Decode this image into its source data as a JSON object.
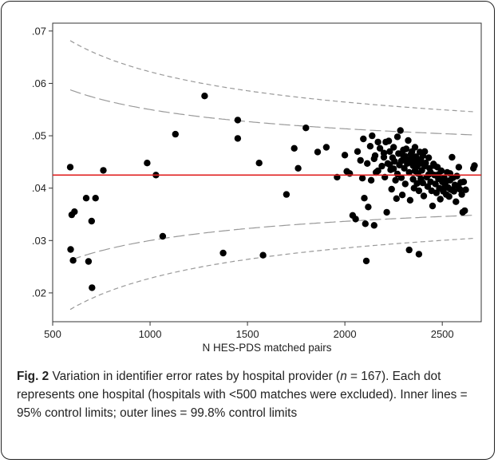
{
  "chart_data": {
    "type": "scatter",
    "xlabel": "N HES-PDS matched pairs",
    "ylabel": "",
    "xlim": [
      500,
      2700
    ],
    "ylim": [
      0.0145,
      0.0715
    ],
    "x_ticks": [
      500,
      1000,
      1500,
      2000,
      2500
    ],
    "x_tick_labels": [
      "500",
      "1000",
      "1500",
      "2000",
      "2500"
    ],
    "y_ticks": [
      0.02,
      0.03,
      0.04,
      0.05,
      0.06,
      0.07
    ],
    "y_tick_labels": [
      ".02",
      ".03",
      ".04",
      ".05",
      ".06",
      ".07"
    ],
    "mean_line": 0.0425,
    "mean_line_color": "#e02020",
    "control_limit_z": {
      "inner_95": 1.96,
      "outer_99_8": 3.09
    },
    "control_limit_color": "#999999",
    "point_color": "#000000",
    "points": [
      [
        590,
        0.044
      ],
      [
        592,
        0.0283
      ],
      [
        598,
        0.0349
      ],
      [
        605,
        0.0262
      ],
      [
        612,
        0.0355
      ],
      [
        672,
        0.0381
      ],
      [
        684,
        0.026
      ],
      [
        700,
        0.0337
      ],
      [
        702,
        0.021
      ],
      [
        720,
        0.0381
      ],
      [
        760,
        0.0434
      ],
      [
        985,
        0.0448
      ],
      [
        1030,
        0.0425
      ],
      [
        1065,
        0.0308
      ],
      [
        1130,
        0.0503
      ],
      [
        1280,
        0.0576
      ],
      [
        1375,
        0.0276
      ],
      [
        1450,
        0.053
      ],
      [
        1450,
        0.0495
      ],
      [
        1560,
        0.0448
      ],
      [
        1580,
        0.0272
      ],
      [
        1700,
        0.0388
      ],
      [
        1740,
        0.0476
      ],
      [
        1760,
        0.0438
      ],
      [
        1800,
        0.0515
      ],
      [
        1860,
        0.0469
      ],
      [
        1905,
        0.0478
      ],
      [
        1960,
        0.0421
      ],
      [
        2000,
        0.0463
      ],
      [
        2010,
        0.0432
      ],
      [
        2025,
        0.0428
      ],
      [
        2040,
        0.0348
      ],
      [
        2055,
        0.0341
      ],
      [
        2065,
        0.047
      ],
      [
        2080,
        0.0453
      ],
      [
        2090,
        0.0419
      ],
      [
        2095,
        0.0494
      ],
      [
        2100,
        0.0381
      ],
      [
        2105,
        0.0332
      ],
      [
        2110,
        0.0261
      ],
      [
        2115,
        0.0447
      ],
      [
        2120,
        0.0364
      ],
      [
        2130,
        0.048
      ],
      [
        2135,
        0.0415
      ],
      [
        2140,
        0.05
      ],
      [
        2150,
        0.0329
      ],
      [
        2155,
        0.0462
      ],
      [
        2160,
        0.043
      ],
      [
        2170,
        0.0488
      ],
      [
        2180,
        0.0476
      ],
      [
        2190,
        0.0442
      ],
      [
        2200,
        0.0459
      ],
      [
        2205,
        0.0421
      ],
      [
        2210,
        0.0488
      ],
      [
        2215,
        0.0354
      ],
      [
        2220,
        0.0447
      ],
      [
        2225,
        0.049
      ],
      [
        2230,
        0.047
      ],
      [
        2235,
        0.0435
      ],
      [
        2240,
        0.0398
      ],
      [
        2245,
        0.0458
      ],
      [
        2250,
        0.0478
      ],
      [
        2255,
        0.0451
      ],
      [
        2260,
        0.0415
      ],
      [
        2265,
        0.038
      ],
      [
        2270,
        0.0498
      ],
      [
        2275,
        0.0466
      ],
      [
        2280,
        0.0444
      ],
      [
        2285,
        0.051
      ],
      [
        2290,
        0.042
      ],
      [
        2295,
        0.0387
      ],
      [
        2300,
        0.0462
      ],
      [
        2305,
        0.0438
      ],
      [
        2310,
        0.0408
      ],
      [
        2315,
        0.0475
      ],
      [
        2320,
        0.0454
      ],
      [
        2325,
        0.0491
      ],
      [
        2330,
        0.043
      ],
      [
        2335,
        0.0377
      ],
      [
        2340,
        0.0465
      ],
      [
        2345,
        0.0449
      ],
      [
        2350,
        0.0417
      ],
      [
        2355,
        0.04
      ],
      [
        2360,
        0.0478
      ],
      [
        2365,
        0.046
      ],
      [
        2370,
        0.0441
      ],
      [
        2375,
        0.0428
      ],
      [
        2380,
        0.0395
      ],
      [
        2385,
        0.0469
      ],
      [
        2390,
        0.0455
      ],
      [
        2395,
        0.0434
      ],
      [
        2400,
        0.041
      ],
      [
        2405,
        0.0385
      ],
      [
        2410,
        0.047
      ],
      [
        2415,
        0.0448
      ],
      [
        2420,
        0.0421
      ],
      [
        2425,
        0.0403
      ],
      [
        2430,
        0.0458
      ],
      [
        2435,
        0.0438
      ],
      [
        2440,
        0.0412
      ],
      [
        2445,
        0.0395
      ],
      [
        2450,
        0.0366
      ],
      [
        2455,
        0.0446
      ],
      [
        2460,
        0.0425
      ],
      [
        2465,
        0.0408
      ],
      [
        2470,
        0.0391
      ],
      [
        2475,
        0.044
      ],
      [
        2480,
        0.0418
      ],
      [
        2485,
        0.04
      ],
      [
        2490,
        0.0379
      ],
      [
        2495,
        0.0433
      ],
      [
        2500,
        0.0412
      ],
      [
        2505,
        0.0394
      ],
      [
        2510,
        0.042
      ],
      [
        2515,
        0.0405
      ],
      [
        2520,
        0.0388
      ],
      [
        2525,
        0.043
      ],
      [
        2530,
        0.0401
      ],
      [
        2535,
        0.0384
      ],
      [
        2540,
        0.0415
      ],
      [
        2545,
        0.0397
      ],
      [
        2550,
        0.0459
      ],
      [
        2555,
        0.042
      ],
      [
        2560,
        0.0394
      ],
      [
        2565,
        0.0406
      ],
      [
        2570,
        0.0374
      ],
      [
        2575,
        0.0423
      ],
      [
        2580,
        0.0404
      ],
      [
        2585,
        0.044
      ],
      [
        2590,
        0.0398
      ],
      [
        2595,
        0.0411
      ],
      [
        2600,
        0.0388
      ],
      [
        2605,
        0.0354
      ],
      [
        2610,
        0.0412
      ],
      [
        2615,
        0.0357
      ],
      [
        2620,
        0.0397
      ],
      [
        2660,
        0.0438
      ],
      [
        2665,
        0.0443
      ],
      [
        2330,
        0.0282
      ],
      [
        2380,
        0.0274
      ],
      [
        2300,
        0.0473
      ],
      [
        2320,
        0.0447
      ],
      [
        2340,
        0.0456
      ],
      [
        2360,
        0.0433
      ],
      [
        2390,
        0.0418
      ],
      [
        2410,
        0.0442
      ],
      [
        2430,
        0.0426
      ],
      [
        2350,
        0.0443
      ],
      [
        2370,
        0.0409
      ],
      [
        2400,
        0.0462
      ],
      [
        2250,
        0.0437
      ],
      [
        2270,
        0.0427
      ],
      [
        2290,
        0.0452
      ],
      [
        2310,
        0.0461
      ],
      [
        2440,
        0.043
      ],
      [
        2460,
        0.0443
      ],
      [
        2480,
        0.0426
      ],
      [
        2500,
        0.0398
      ],
      [
        2520,
        0.0413
      ],
      [
        2540,
        0.0428
      ],
      [
        2200,
        0.0467
      ],
      [
        2230,
        0.0445
      ],
      [
        2170,
        0.0433
      ],
      [
        2150,
        0.0456
      ],
      [
        2345,
        0.047
      ],
      [
        2365,
        0.0452
      ],
      [
        2385,
        0.0447
      ]
    ]
  },
  "caption": {
    "fig_label": "Fig. 2",
    "text_before_n": " Variation in identifier error rates by hospital provider (",
    "n_symbol": "n",
    "text_after_n": " = 167). Each dot represents one hospital (hospitals with <500 matches were excluded). Inner lines = 95% control limits; outer lines = 99.8% control limits"
  }
}
